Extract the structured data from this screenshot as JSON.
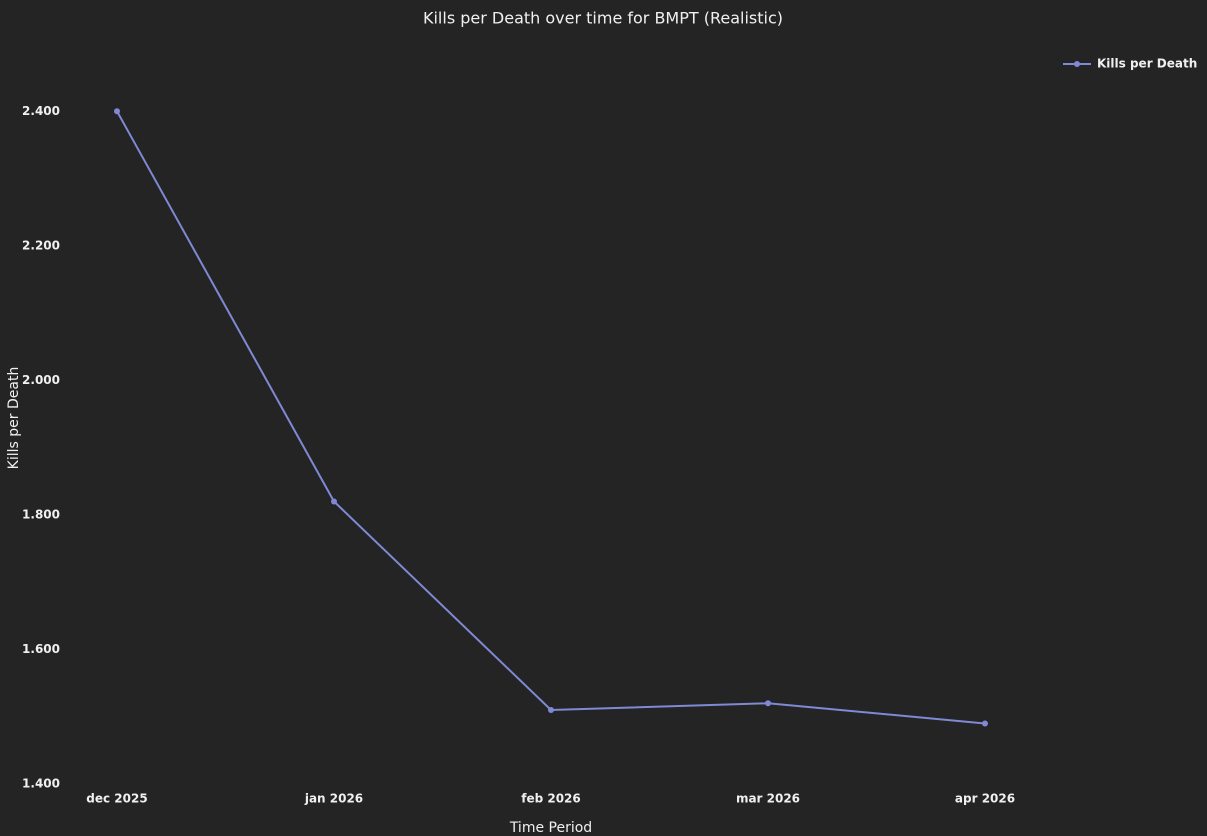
{
  "chart_data": {
    "type": "line",
    "title": "Kills per Death over time for BMPT (Realistic)",
    "x_label": "Time Period",
    "y_label": "Kills per Death",
    "categories": [
      "dec 2025",
      "jan 2026",
      "feb 2026",
      "mar 2026",
      "apr 2026"
    ],
    "series": [
      {
        "name": "Kills per Death",
        "color": "#7f89d4",
        "values": [
          2.4,
          1.82,
          1.51,
          1.52,
          1.49
        ]
      }
    ],
    "ylim": [
      1.4,
      2.5
    ],
    "yticks": [
      {
        "value": 1.4,
        "label": "1.400"
      },
      {
        "value": 1.6,
        "label": "1.600"
      },
      {
        "value": 1.8,
        "label": "1.800"
      },
      {
        "value": 2.0,
        "label": "2.000"
      },
      {
        "value": 2.2,
        "label": "2.200"
      },
      {
        "value": 2.4,
        "label": "2.400"
      }
    ],
    "grid": false,
    "legend": "top-right"
  }
}
